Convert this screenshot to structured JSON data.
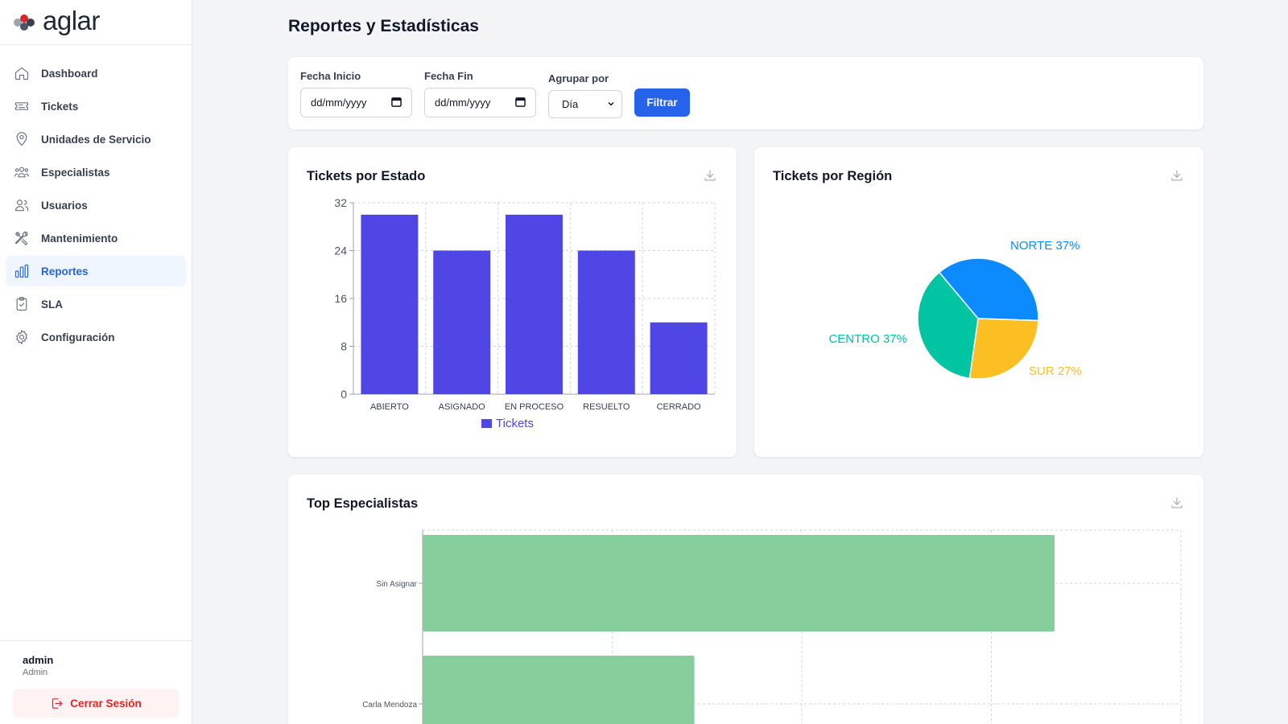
{
  "app": {
    "logo_text": "aglar",
    "logo_dot_colors": [
      "#9ca3af",
      "#dc2626",
      "#4b5563",
      "#374151"
    ]
  },
  "sidebar": {
    "items": [
      {
        "label": "Dashboard",
        "icon": "home-icon",
        "active": false
      },
      {
        "label": "Tickets",
        "icon": "ticket-icon",
        "active": false
      },
      {
        "label": "Unidades de Servicio",
        "icon": "map-pin-icon",
        "active": false
      },
      {
        "label": "Especialistas",
        "icon": "users-group-icon",
        "active": false
      },
      {
        "label": "Usuarios",
        "icon": "users-icon",
        "active": false
      },
      {
        "label": "Mantenimiento",
        "icon": "tools-icon",
        "active": false
      },
      {
        "label": "Reportes",
        "icon": "bar-chart-icon",
        "active": true
      },
      {
        "label": "SLA",
        "icon": "clipboard-check-icon",
        "active": false
      },
      {
        "label": "Configuración",
        "icon": "gear-icon",
        "active": false
      }
    ],
    "user": {
      "name": "admin",
      "role": "Admin"
    },
    "logout_label": "Cerrar Sesión"
  },
  "page": {
    "title": "Reportes y Estadísticas"
  },
  "filters": {
    "start_label": "Fecha Inicio",
    "start_value": "dd/mm/yyyy",
    "end_label": "Fecha Fin",
    "end_value": "dd/mm/yyyy",
    "group_label": "Agrupar por",
    "group_value": "Día",
    "button_label": "Filtrar"
  },
  "cards": {
    "state_title": "Tickets por Estado",
    "region_title": "Tickets por Región",
    "top_title": "Top Especialistas"
  },
  "colors": {
    "accent": "#2563eb",
    "bar_purple": "#4f46e5",
    "bar_green": "#86ce9c",
    "pie_blue": "#0b8bff",
    "pie_yellow": "#fbbf24",
    "pie_teal": "#00c4a2"
  },
  "chart_data": [
    {
      "type": "bar",
      "categories": [
        "ABIERTO",
        "ASIGNADO",
        "EN PROCESO",
        "RESUELTO",
        "CERRADO"
      ],
      "series": [
        {
          "name": "Tickets",
          "values": [
            30,
            24,
            30,
            24,
            12
          ]
        }
      ],
      "yticks": [
        0,
        8,
        16,
        24,
        32
      ],
      "ylim": [
        0,
        32
      ],
      "grid": true,
      "legend": "bottom-center"
    },
    {
      "type": "pie",
      "slices": [
        {
          "label": "NORTE",
          "percent_label": "NORTE 37%",
          "value": 37
        },
        {
          "label": "SUR",
          "percent_label": "SUR 27%",
          "value": 27
        },
        {
          "label": "CENTRO",
          "percent_label": "CENTRO 37%",
          "value": 37
        }
      ]
    },
    {
      "type": "bar",
      "orientation": "horizontal",
      "categories": [
        "Sin Asignar",
        "Carla Mendoza"
      ],
      "values": [
        10,
        4.3
      ],
      "xlim": [
        0,
        12
      ],
      "grid": true
    }
  ]
}
